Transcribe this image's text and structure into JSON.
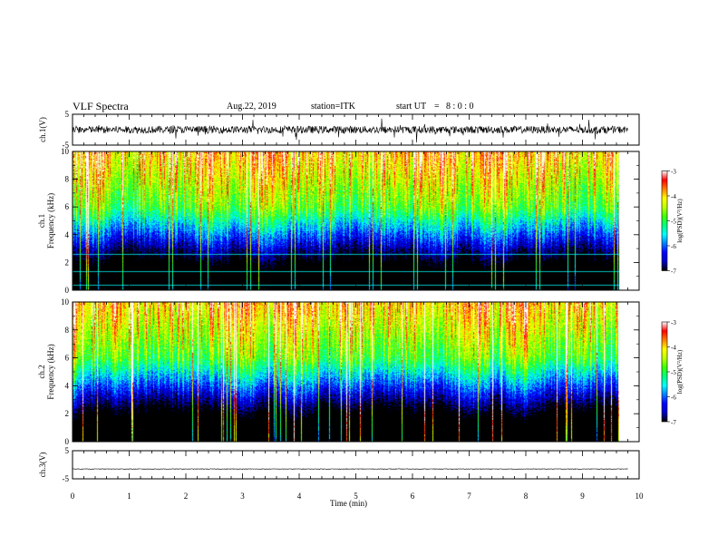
{
  "header": {
    "title": "VLF Spectra",
    "date": "Aug.22, 2019",
    "station": "station=ITK",
    "start_label": "start UT",
    "start_time": "8 : 0 : 0",
    "start_eq": "="
  },
  "chart_data": [
    {
      "id": "ch1-waveform",
      "type": "line",
      "ylabel": "ch.1(V)",
      "ylim": [
        -5,
        5
      ],
      "yticks": [
        "5",
        "-5"
      ],
      "xlim": [
        0,
        10
      ],
      "data_extent_min": 9.8,
      "baseline": 0,
      "noise_amplitude": 1.2,
      "spike_amplitude": 3.5
    },
    {
      "id": "ch1-spectrogram",
      "type": "heatmap",
      "ylabel_line1": "ch.1",
      "ylabel_line2": "Frequency (kHz)",
      "ylim": [
        0,
        10
      ],
      "yticks": [
        "0",
        "2",
        "4",
        "6",
        "8",
        "10"
      ],
      "xlim": [
        0,
        10
      ],
      "data_extent_min": 9.8,
      "colorbar": {
        "label": "log(PSD)(V²/Hz)",
        "range": [
          -7,
          -3
        ],
        "ticks": [
          "-3",
          "-4",
          "-5",
          "-6",
          "-7"
        ]
      },
      "line_frequencies_khz": [
        0.4,
        1.4,
        2.6
      ]
    },
    {
      "id": "ch2-spectrogram",
      "type": "heatmap",
      "ylabel_line1": "ch.2",
      "ylabel_line2": "Frequency (kHz)",
      "ylim": [
        0,
        10
      ],
      "yticks": [
        "0",
        "2",
        "4",
        "6",
        "8",
        "10"
      ],
      "xlim": [
        0,
        10
      ],
      "data_extent_min": 9.8,
      "colorbar": {
        "label": "log(PSD)(V²/Hz)",
        "range": [
          -7,
          -3
        ],
        "ticks": [
          "-3",
          "-4",
          "-5",
          "-6",
          "-7"
        ]
      },
      "line_frequencies_khz": []
    },
    {
      "id": "ch3-waveform",
      "type": "line",
      "ylabel": "ch.3(V)",
      "ylim": [
        -5,
        5
      ],
      "yticks": [
        "5",
        "-5"
      ],
      "xlim": [
        0,
        10
      ],
      "data_extent_min": 9.8,
      "baseline": -1.5,
      "noise_amplitude": 0.1,
      "spike_amplitude": 0
    }
  ],
  "xaxis": {
    "label": "Time (min)",
    "ticks": [
      "0",
      "1",
      "2",
      "3",
      "4",
      "5",
      "6",
      "7",
      "8",
      "9",
      "10"
    ]
  },
  "colormap": [
    "#000000",
    "#0000c8",
    "#0000ff",
    "#0080ff",
    "#00ffff",
    "#00ff80",
    "#40ff00",
    "#c0ff00",
    "#ffff00",
    "#ff8000",
    "#ff0000",
    "#ffffff"
  ]
}
